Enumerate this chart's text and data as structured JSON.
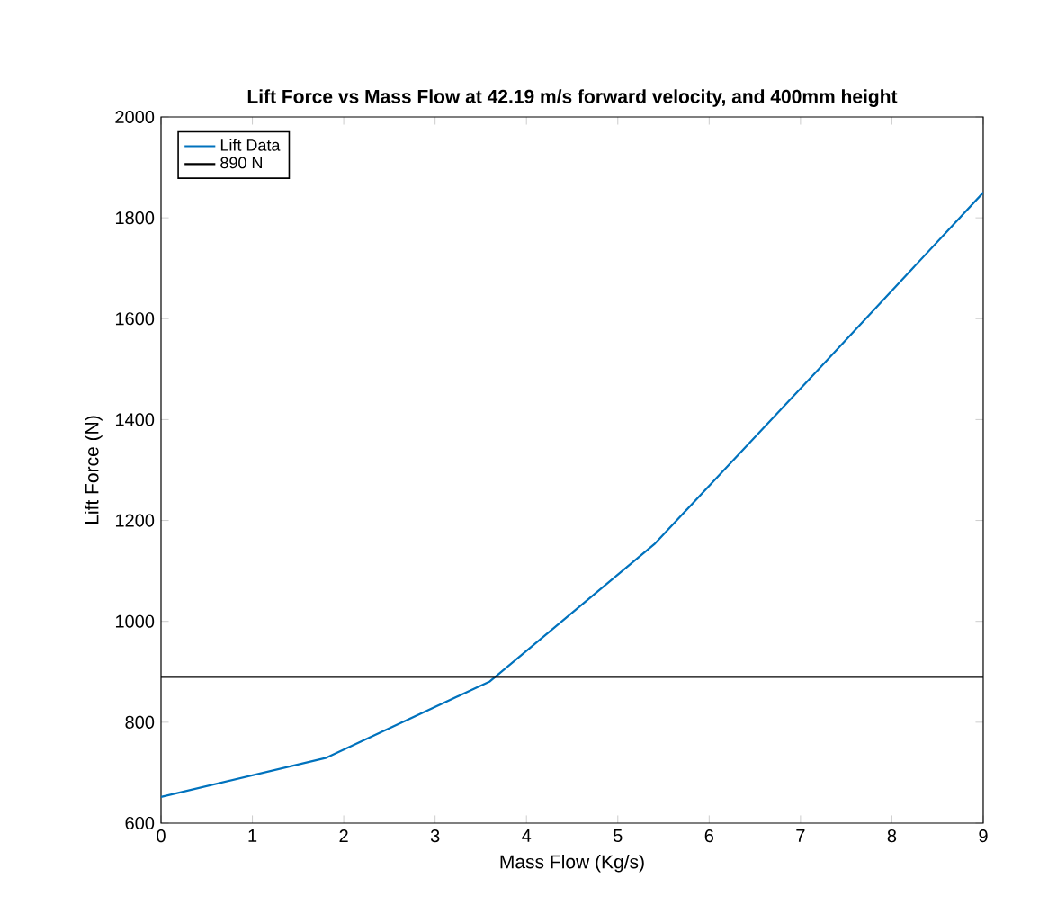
{
  "chart_data": {
    "type": "line",
    "title": "Lift Force vs Mass Flow at 42.19 m/s forward velocity, and 400mm height",
    "xlabel": "Mass Flow (Kg/s)",
    "ylabel": "Lift Force (N)",
    "x": [
      0,
      1.8,
      3.6,
      5.4,
      7.2,
      9
    ],
    "series": [
      {
        "name": "Lift Data",
        "color": "#0072bd",
        "values": [
          652,
          729,
          881,
          1153,
          1500,
          1850
        ]
      }
    ],
    "ref_lines": [
      {
        "axis": "y",
        "value": 890,
        "label": "890 N",
        "color": "#000000"
      }
    ],
    "xlim": [
      0,
      9
    ],
    "xticks": [
      0,
      1,
      2,
      3,
      4,
      5,
      6,
      7,
      8,
      9
    ],
    "ylim": [
      600,
      2000
    ],
    "yticks": [
      600,
      800,
      1000,
      1200,
      1400,
      1600,
      1800,
      2000
    ],
    "legend": "top left",
    "grid": false
  }
}
